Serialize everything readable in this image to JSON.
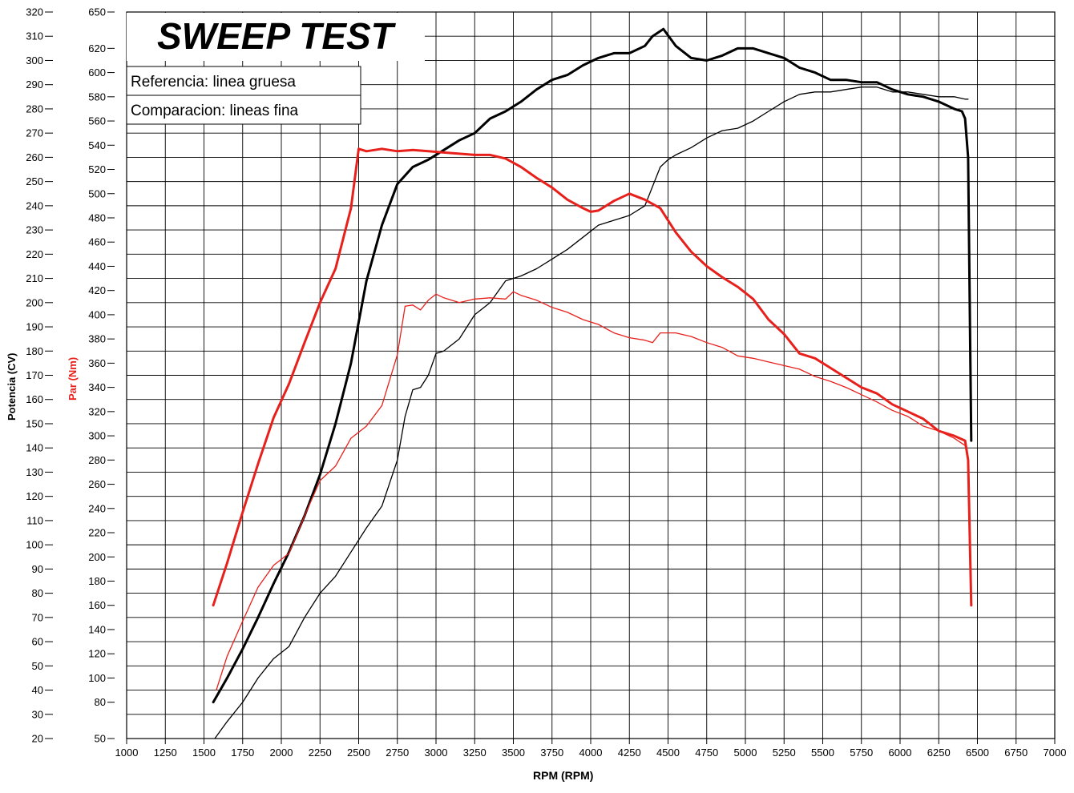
{
  "chart_data": {
    "type": "line",
    "title": "SWEEP TEST",
    "legend": {
      "placement": "top-left",
      "entries": [
        "Referencia: linea gruesa",
        "Comparacion: lineas fina"
      ]
    },
    "xlabel": "RPM (RPM)",
    "ylabel_power": "Potencia (CV)",
    "ylabel_torque": "Par (Nm)",
    "xlim": [
      1000,
      7000
    ],
    "ylim_power": [
      20,
      320
    ],
    "ylim_torque": [
      50,
      650
    ],
    "grid": true,
    "x_ticks": [
      "1000",
      "1250",
      "1500",
      "1750",
      "2000",
      "2250",
      "2500",
      "2750",
      "3000",
      "3250",
      "3500",
      "3750",
      "4000",
      "4250",
      "4500",
      "4750",
      "5000",
      "5250",
      "5500",
      "5750",
      "6000",
      "6250",
      "6500",
      "6750",
      "7000"
    ],
    "power_ticks": [
      "20",
      "30",
      "40",
      "50",
      "60",
      "70",
      "80",
      "90",
      "100",
      "110",
      "120",
      "130",
      "140",
      "150",
      "160",
      "170",
      "180",
      "190",
      "200",
      "210",
      "220",
      "230",
      "240",
      "250",
      "260",
      "270",
      "280",
      "290",
      "300",
      "310",
      "320"
    ],
    "torque_ticks": [
      "50",
      "80",
      "100",
      "120",
      "140",
      "160",
      "180",
      "200",
      "220",
      "240",
      "260",
      "280",
      "300",
      "320",
      "340",
      "360",
      "380",
      "400",
      "420",
      "440",
      "460",
      "480",
      "500",
      "520",
      "540",
      "560",
      "580",
      "600",
      "620",
      "650"
    ],
    "colors": {
      "power": "#000000",
      "torque": "#e8201c",
      "grid": "#000000"
    },
    "series": [
      {
        "axis": "power",
        "weight": "thick",
        "color": "#000000",
        "x": [
          1560,
          1650,
          1750,
          1850,
          1950,
          2050,
          2150,
          2250,
          2350,
          2450,
          2550,
          2650,
          2750,
          2850,
          2950,
          3050,
          3150,
          3250,
          3350,
          3450,
          3550,
          3650,
          3750,
          3850,
          3950,
          4050,
          4150,
          4250,
          4350,
          4400,
          4470,
          4550,
          4650,
          4750,
          4850,
          4950,
          5050,
          5150,
          5250,
          5350,
          5450,
          5550,
          5650,
          5750,
          5850,
          5950,
          6050,
          6150,
          6250,
          6350,
          6400,
          6420,
          6440,
          6460
        ],
        "y": [
          35,
          45,
          57,
          70,
          84,
          97,
          112,
          129,
          150,
          175,
          209,
          232,
          249,
          256,
          259,
          263,
          267,
          270,
          276,
          279,
          283,
          288,
          292,
          294,
          298,
          301,
          303,
          303,
          306,
          310,
          313,
          306,
          301,
          300,
          302,
          305,
          305,
          303,
          301,
          297,
          295,
          292,
          292,
          291,
          291,
          288,
          286,
          285,
          283,
          280,
          279,
          276,
          260,
          143
        ]
      },
      {
        "axis": "power",
        "weight": "thin",
        "color": "#000000",
        "x": [
          1570,
          1650,
          1750,
          1850,
          1950,
          2050,
          2150,
          2250,
          2350,
          2450,
          2550,
          2650,
          2750,
          2800,
          2850,
          2900,
          2950,
          3000,
          3050,
          3150,
          3250,
          3350,
          3450,
          3550,
          3650,
          3750,
          3850,
          3950,
          4050,
          4150,
          4250,
          4350,
          4400,
          4450,
          4500,
          4550,
          4650,
          4750,
          4850,
          4950,
          5050,
          5150,
          5250,
          5350,
          5450,
          5550,
          5650,
          5750,
          5850,
          5950,
          6050,
          6150,
          6250,
          6350,
          6420,
          6440
        ],
        "y": [
          20,
          27,
          35,
          45,
          53,
          58,
          70,
          80,
          87,
          97,
          107,
          116,
          135,
          153,
          164,
          165,
          170,
          179,
          180,
          185,
          195,
          200,
          209,
          211,
          214,
          218,
          222,
          227,
          232,
          234,
          236,
          240,
          248,
          256,
          259,
          261,
          264,
          268,
          271,
          272,
          275,
          279,
          283,
          286,
          287,
          287,
          288,
          289,
          289,
          287,
          287,
          286,
          285,
          285,
          284,
          284
        ]
      },
      {
        "axis": "torque",
        "weight": "thick",
        "color": "#e8201c",
        "x": [
          1560,
          1650,
          1750,
          1850,
          1950,
          2050,
          2150,
          2250,
          2350,
          2450,
          2500,
          2550,
          2650,
          2750,
          2850,
          2950,
          3050,
          3150,
          3250,
          3350,
          3450,
          3550,
          3650,
          3750,
          3850,
          3950,
          4000,
          4050,
          4150,
          4250,
          4350,
          4450,
          4550,
          4650,
          4750,
          4850,
          4950,
          5050,
          5150,
          5250,
          5350,
          5450,
          5550,
          5650,
          5750,
          5850,
          5950,
          6050,
          6150,
          6250,
          6350,
          6420,
          6440,
          6460
        ],
        "y": [
          160,
          195,
          237,
          277,
          315,
          343,
          377,
          410,
          438,
          488,
          537,
          535,
          537,
          535,
          536,
          535,
          534,
          533,
          532,
          532,
          529,
          522,
          513,
          505,
          495,
          488,
          485,
          486,
          494,
          500,
          495,
          488,
          468,
          452,
          440,
          431,
          423,
          413,
          396,
          384,
          368,
          364,
          356,
          348,
          340,
          335,
          326,
          320,
          314,
          304,
          300,
          296,
          280,
          160
        ]
      },
      {
        "axis": "torque",
        "weight": "thin",
        "color": "#e8201c",
        "x": [
          1580,
          1650,
          1750,
          1850,
          1950,
          2050,
          2150,
          2250,
          2350,
          2450,
          2550,
          2650,
          2750,
          2800,
          2850,
          2900,
          2950,
          3000,
          3050,
          3150,
          3250,
          3350,
          3450,
          3500,
          3550,
          3650,
          3750,
          3850,
          3950,
          4050,
          4150,
          4250,
          4350,
          4400,
          4450,
          4550,
          4650,
          4750,
          4850,
          4950,
          5050,
          5150,
          5250,
          5350,
          5450,
          5550,
          5650,
          5750,
          5850,
          5950,
          6050,
          6150,
          6250,
          6350,
          6420,
          6440,
          6460
        ],
        "y": [
          90,
          118,
          147,
          175,
          193,
          203,
          234,
          263,
          275,
          298,
          308,
          325,
          367,
          407,
          408,
          404,
          412,
          417,
          414,
          410,
          413,
          414,
          413,
          419,
          416,
          412,
          406,
          402,
          396,
          392,
          385,
          381,
          379,
          377,
          385,
          385,
          382,
          377,
          373,
          366,
          364,
          361,
          358,
          355,
          349,
          345,
          340,
          334,
          328,
          321,
          316,
          308,
          304,
          298,
          292,
          280,
          180
        ]
      }
    ]
  }
}
